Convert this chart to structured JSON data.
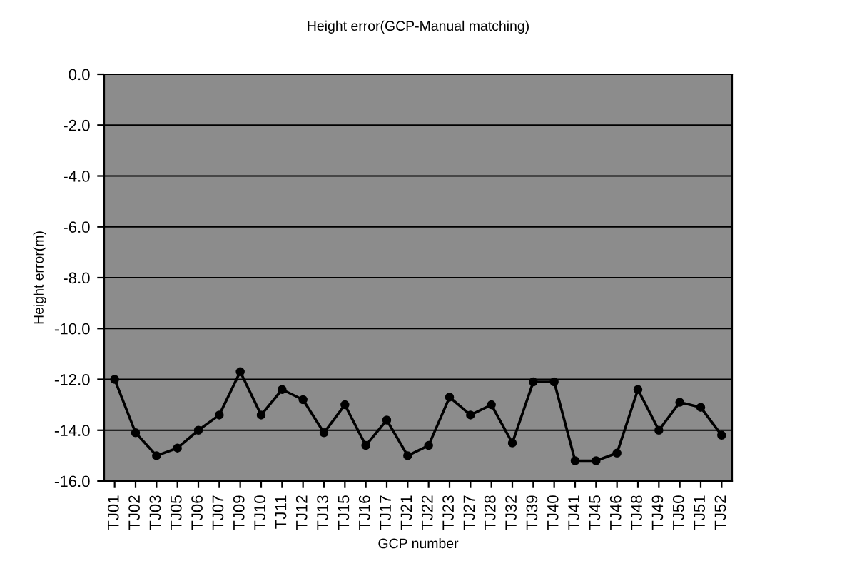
{
  "chart_data": {
    "type": "line",
    "title": "Height error(GCP-Manual matching)",
    "xlabel": "GCP number",
    "ylabel": "Height error(m)",
    "categories": [
      "TJ01",
      "TJ02",
      "TJ03",
      "TJ05",
      "TJ06",
      "TJ07",
      "TJ09",
      "TJ10",
      "TJ11",
      "TJ12",
      "TJ13",
      "TJ15",
      "TJ16",
      "TJ17",
      "TJ21",
      "TJ22",
      "TJ23",
      "TJ27",
      "TJ28",
      "TJ32",
      "TJ39",
      "TJ40",
      "TJ41",
      "TJ45",
      "TJ46",
      "TJ48",
      "TJ49",
      "TJ50",
      "TJ51",
      "TJ52"
    ],
    "series": [
      {
        "color": "#000000",
        "values": [
          -12.0,
          -14.1,
          -15.0,
          -14.7,
          -14.0,
          -13.4,
          -11.7,
          -13.4,
          -12.4,
          -12.8,
          -14.1,
          -13.0,
          -14.6,
          -13.6,
          -15.0,
          -14.6,
          -12.7,
          -13.4,
          -13.0,
          -14.5,
          -12.1,
          -12.1,
          -15.2,
          -15.2,
          -14.9,
          -12.4,
          -14.0,
          -12.9,
          -13.1,
          -14.2
        ]
      }
    ],
    "ylim": [
      -16,
      0
    ],
    "yticks": [
      {
        "value": -16,
        "label": "-16.0"
      },
      {
        "value": -14,
        "label": "-14.0"
      },
      {
        "value": -12,
        "label": "-12.0"
      },
      {
        "value": -10,
        "label": "-10.0"
      },
      {
        "value": -8,
        "label": "-8.0"
      },
      {
        "value": -6,
        "label": "-6.0"
      },
      {
        "value": -4,
        "label": "-4.0"
      },
      {
        "value": -2,
        "label": "-2.0"
      },
      {
        "value": 0,
        "label": "0.0"
      }
    ],
    "grid": "y",
    "marker": "circle",
    "line_style": "solid"
  }
}
